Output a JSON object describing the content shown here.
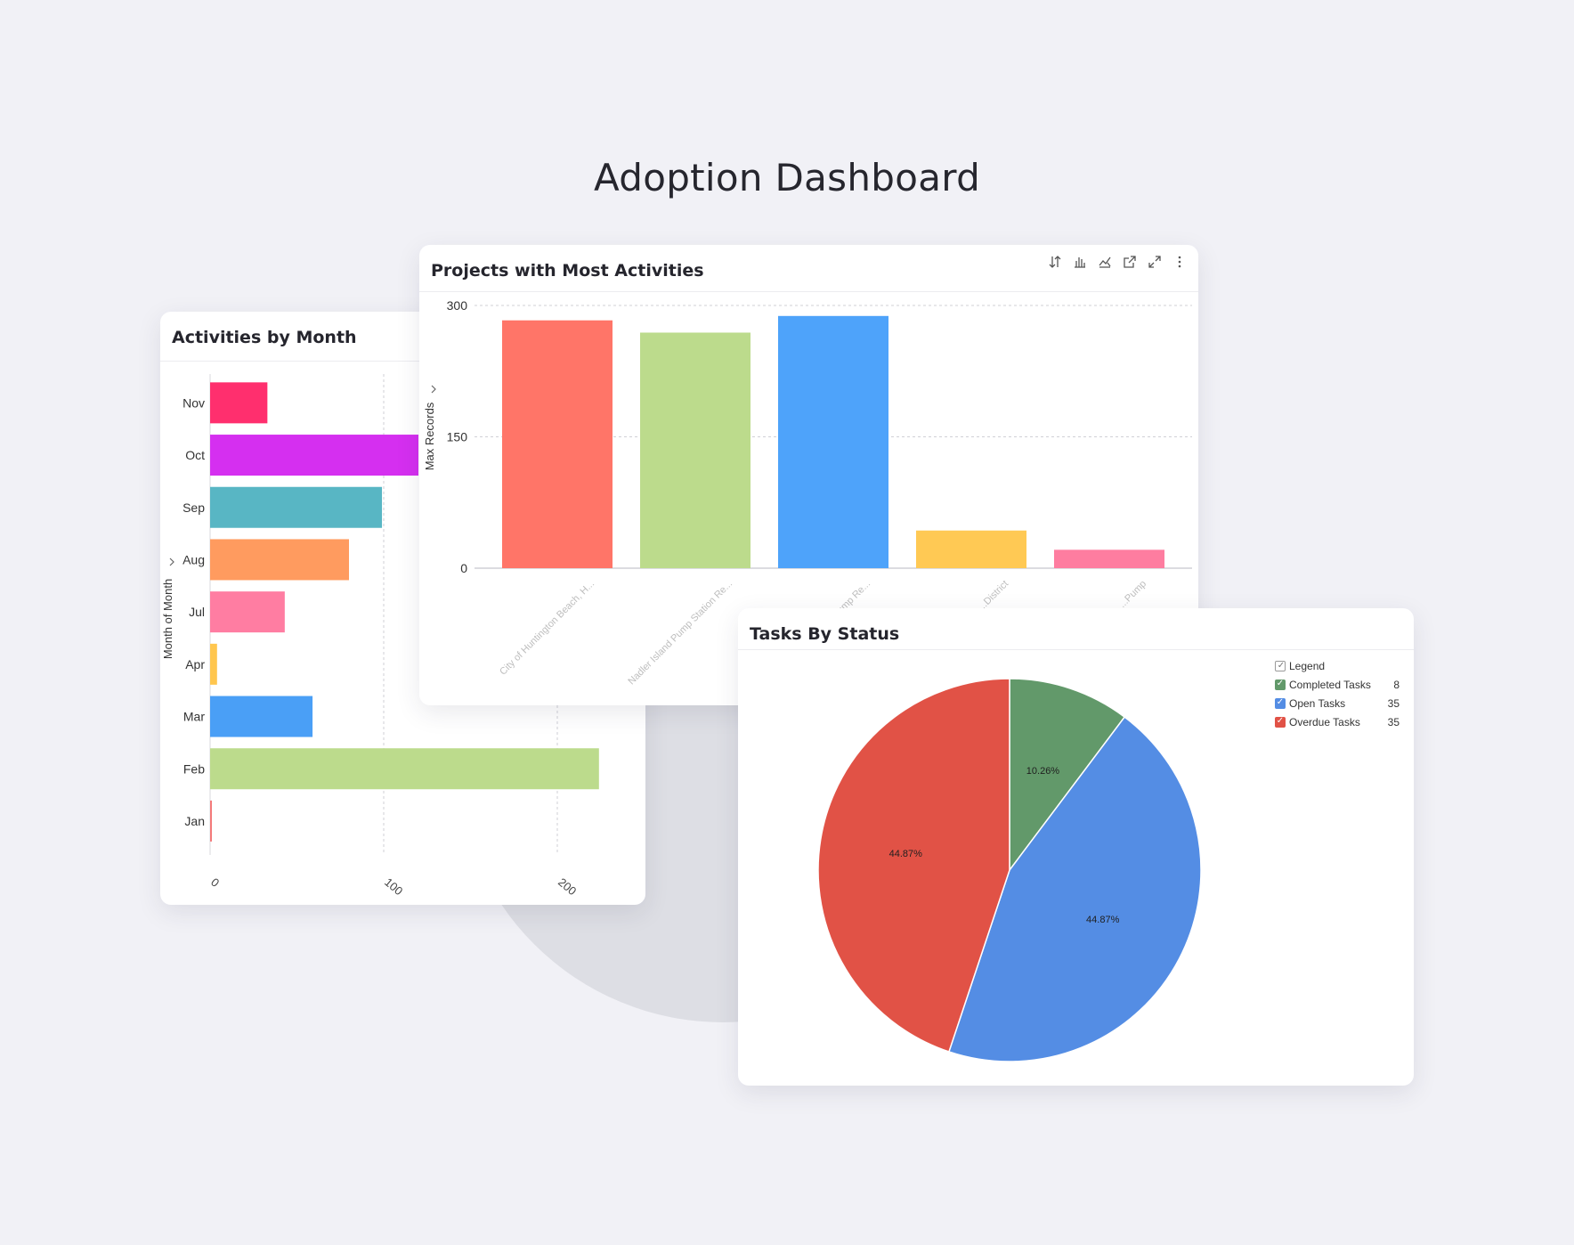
{
  "page": {
    "title": "Adoption Dashboard"
  },
  "colors": {
    "background": "#f1f1f6",
    "card": "#ffffff",
    "circle": "#dddee4"
  },
  "activities_card": {
    "title": "Activities by Month",
    "y_axis_label": "Month of Month"
  },
  "projects_card": {
    "title": "Projects with Most Activities",
    "y_axis_label": "Max Records",
    "toolbar": [
      "sort-icon",
      "bar-chart-icon",
      "chart-type-icon",
      "open-external-icon",
      "expand-icon",
      "more-options-icon"
    ]
  },
  "tasks_card": {
    "title": "Tasks By Status",
    "legend_title": "Legend"
  },
  "chart_data": [
    {
      "type": "bar",
      "orientation": "horizontal",
      "title": "Activities by Month",
      "ylabel": "Month of Month",
      "categories": [
        "Nov",
        "Oct",
        "Sep",
        "Aug",
        "Jul",
        "Apr",
        "Mar",
        "Feb",
        "Jan"
      ],
      "values": [
        33,
        120,
        99,
        80,
        43,
        4,
        59,
        224,
        1
      ],
      "colors": [
        "#ff2f6e",
        "#d52ff0",
        "#58b6c4",
        "#ff9b5f",
        "#ff7da2",
        "#ffc64e",
        "#4a9ff6",
        "#bcdb8c",
        "#f47a7a"
      ],
      "x_ticks": [
        "0",
        "100",
        "200"
      ],
      "xlim": [
        0,
        250
      ],
      "grid": true
    },
    {
      "type": "bar",
      "title": "Projects with Most Activities",
      "ylabel": "Max Records",
      "categories": [
        "City of Huntington Beach, H...",
        "Nadler Island Pump Station Re...",
        "Pump Re...",
        "...District",
        "...Pump"
      ],
      "values": [
        283,
        269,
        288,
        43,
        21
      ],
      "colors": [
        "#ff7568",
        "#bcdb8c",
        "#4ea3fa",
        "#ffc954",
        "#fe7da0"
      ],
      "y_ticks": [
        "0",
        "150",
        "300"
      ],
      "ylim": [
        0,
        300
      ],
      "grid": true
    },
    {
      "type": "pie",
      "title": "Tasks By Status",
      "slices": [
        {
          "label": "Completed Tasks",
          "value": 8,
          "percent": "10.26%",
          "color": "#62996a"
        },
        {
          "label": "Open Tasks",
          "value": 35,
          "percent": "44.87%",
          "color": "#548de4"
        },
        {
          "label": "Overdue Tasks",
          "value": 35,
          "percent": "44.87%",
          "color": "#e15246"
        }
      ]
    }
  ]
}
